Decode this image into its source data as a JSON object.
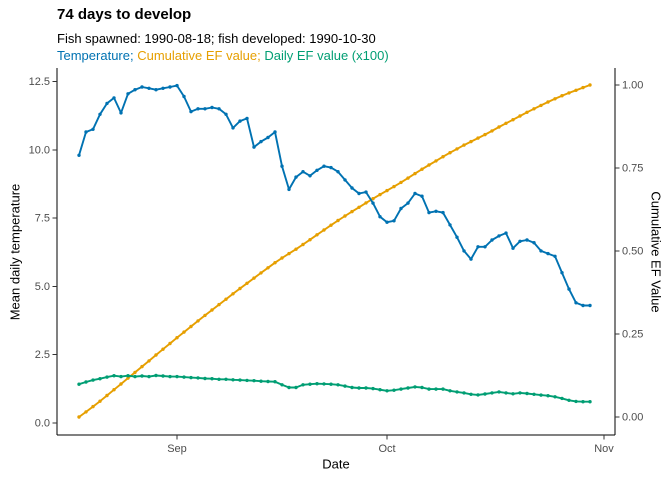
{
  "header": {
    "title": "74 days to develop",
    "subtitle": "Fish spawned: 1990-08-18; fish developed: 1990-10-30",
    "legend_segments": [
      {
        "text": "Temperature;",
        "color": "#0072B2"
      },
      {
        "text": " Cumulative EF value;",
        "color": "#E69F00"
      },
      {
        "text": " Daily EF value (x100)",
        "color": "#009E73"
      }
    ]
  },
  "colors": {
    "temperature": "#0072B2",
    "cumulative_ef": "#E69F00",
    "daily_ef": "#009E73",
    "axis_line": "#000000",
    "tick_text": "#4d4d4d"
  },
  "chart_data": {
    "type": "line",
    "title": "74 days to develop",
    "subtitle": "Fish spawned: 1990-08-18; fish developed: 1990-10-30",
    "grid": false,
    "legend_position": "subtitle",
    "x": {
      "label": "Date",
      "start_date": "1990-08-18",
      "end_date": "1990-10-30",
      "n_points": 74,
      "tick_labels": [
        "Sep",
        "Oct",
        "Nov"
      ],
      "tick_day_offsets": [
        14,
        44,
        75
      ]
    },
    "y_left": {
      "label": "Mean daily temperature",
      "tick_values": [
        0.0,
        2.5,
        5.0,
        7.5,
        10.0,
        12.5
      ],
      "tick_labels": [
        "0.0",
        "2.5",
        "5.0",
        "7.5",
        "10.0",
        "12.5"
      ],
      "range": [
        -0.45,
        13.0
      ]
    },
    "y_right": {
      "label": "Cumulative EF Value",
      "tick_values": [
        0.0,
        0.25,
        0.5,
        0.75,
        1.0
      ],
      "tick_labels": [
        "0.00",
        "0.25",
        "0.50",
        "0.75",
        "1.00"
      ],
      "range": [
        0,
        1.0
      ]
    },
    "series": [
      {
        "name": "Temperature",
        "color": "#0072B2",
        "axis": "left",
        "values": [
          9.8,
          10.65,
          10.75,
          11.3,
          11.7,
          11.9,
          11.35,
          12.05,
          12.2,
          12.3,
          12.25,
          12.2,
          12.25,
          12.3,
          12.35,
          11.95,
          11.4,
          11.5,
          11.5,
          11.55,
          11.5,
          11.3,
          10.8,
          11.05,
          11.15,
          10.1,
          10.3,
          10.45,
          10.65,
          9.4,
          8.55,
          9.0,
          9.2,
          9.05,
          9.25,
          9.4,
          9.35,
          9.2,
          8.9,
          8.6,
          8.4,
          8.45,
          8.05,
          7.55,
          7.35,
          7.4,
          7.85,
          8.05,
          8.4,
          8.3,
          7.7,
          7.75,
          7.7,
          7.25,
          6.8,
          6.3,
          6.0,
          6.45,
          6.45,
          6.7,
          6.85,
          6.95,
          6.4,
          6.65,
          6.7,
          6.6,
          6.3,
          6.2,
          6.1,
          5.5,
          4.9,
          4.4,
          4.3,
          4.3
        ]
      },
      {
        "name": "Daily EF value (x100)",
        "color": "#009E73",
        "axis": "left",
        "values": [
          1.42,
          1.5,
          1.57,
          1.62,
          1.68,
          1.73,
          1.7,
          1.73,
          1.7,
          1.72,
          1.7,
          1.74,
          1.72,
          1.7,
          1.7,
          1.68,
          1.66,
          1.65,
          1.63,
          1.62,
          1.6,
          1.6,
          1.58,
          1.57,
          1.56,
          1.55,
          1.53,
          1.52,
          1.51,
          1.4,
          1.3,
          1.3,
          1.4,
          1.42,
          1.44,
          1.43,
          1.42,
          1.4,
          1.35,
          1.3,
          1.28,
          1.28,
          1.26,
          1.22,
          1.18,
          1.2,
          1.24,
          1.28,
          1.32,
          1.3,
          1.24,
          1.24,
          1.24,
          1.18,
          1.14,
          1.1,
          1.05,
          1.03,
          1.06,
          1.1,
          1.14,
          1.1,
          1.07,
          1.1,
          1.08,
          1.05,
          1.02,
          1.0,
          0.96,
          0.9,
          0.83,
          0.79,
          0.78,
          0.78
        ]
      },
      {
        "name": "Cumulative EF value",
        "color": "#E69F00",
        "axis": "right",
        "derived": "normalized cumulative sum of daily EF values, from 0.00 on spawn day to 1.00 on development day"
      }
    ]
  }
}
